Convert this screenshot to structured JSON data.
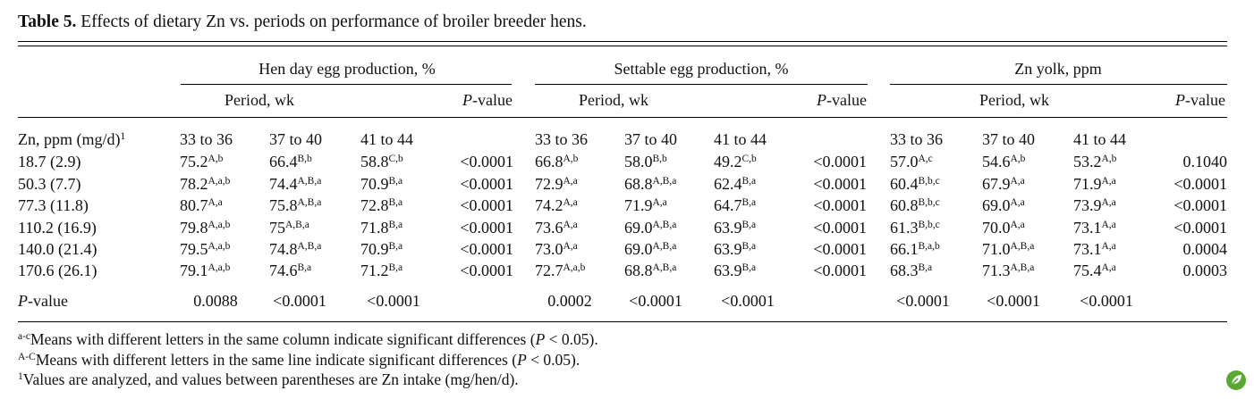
{
  "title": {
    "label": "Table 5.",
    "text": "Effects of dietary Zn vs. periods on performance of broiler breeder hens."
  },
  "groups": [
    {
      "label": "Hen day egg production, %",
      "period_label": "Period, wk",
      "p_label": "P",
      "p_suffix": "-value"
    },
    {
      "label": "Settable egg production, %",
      "period_label": "Period, wk",
      "p_label": "P",
      "p_suffix": "-value"
    },
    {
      "label": "Zn yolk, ppm",
      "period_label": "Period, wk",
      "p_label": "P",
      "p_suffix": "-value"
    }
  ],
  "row_header": {
    "text": "Zn, ppm (mg/d)",
    "sup": "1"
  },
  "periods": [
    "33 to 36",
    "37 to 40",
    "41 to 44"
  ],
  "rows": [
    {
      "label": "18.7 (2.9)",
      "cells": [
        [
          "75.2",
          "A,b"
        ],
        [
          "66.4",
          "B,b"
        ],
        [
          "58.8",
          "C,b"
        ],
        [
          "<0.0001",
          ""
        ],
        [
          "66.8",
          "A,b"
        ],
        [
          "58.0",
          "B,b"
        ],
        [
          "49.2",
          "C,b"
        ],
        [
          "<0.0001",
          ""
        ],
        [
          "57.0",
          "A,c"
        ],
        [
          "54.6",
          "A,b"
        ],
        [
          "53.2",
          "A,b"
        ],
        [
          "0.1040",
          ""
        ]
      ]
    },
    {
      "label": "50.3 (7.7)",
      "cells": [
        [
          "78.2",
          "A,a,b"
        ],
        [
          "74.4",
          "A,B,a"
        ],
        [
          "70.9",
          "B,a"
        ],
        [
          "<0.0001",
          ""
        ],
        [
          "72.9",
          "A,a"
        ],
        [
          "68.8",
          "A,B,a"
        ],
        [
          "62.4",
          "B,a"
        ],
        [
          "<0.0001",
          ""
        ],
        [
          "60.4",
          "B,b,c"
        ],
        [
          "67.9",
          "A,a"
        ],
        [
          "71.9",
          "A,a"
        ],
        [
          "<0.0001",
          ""
        ]
      ]
    },
    {
      "label": "77.3 (11.8)",
      "cells": [
        [
          "80.7",
          "A,a"
        ],
        [
          "75.8",
          "A,B,a"
        ],
        [
          "72.8",
          "B,a"
        ],
        [
          "<0.0001",
          ""
        ],
        [
          "74.2",
          "A,a"
        ],
        [
          "71.9",
          "A,a"
        ],
        [
          "64.7",
          "B,a"
        ],
        [
          "<0.0001",
          ""
        ],
        [
          "60.8",
          "B,b,c"
        ],
        [
          "69.0",
          "A,a"
        ],
        [
          "73.9",
          "A,a"
        ],
        [
          "<0.0001",
          ""
        ]
      ]
    },
    {
      "label": "110.2 (16.9)",
      "cells": [
        [
          "79.8",
          "A,a,b"
        ],
        [
          "75",
          "A,B,a"
        ],
        [
          "71.8",
          "B,a"
        ],
        [
          "<0.0001",
          ""
        ],
        [
          "73.6",
          "A,a"
        ],
        [
          "69.0",
          "A,B,a"
        ],
        [
          "63.9",
          "B,a"
        ],
        [
          "<0.0001",
          ""
        ],
        [
          "61.3",
          "B,b,c"
        ],
        [
          "70.0",
          "A,a"
        ],
        [
          "73.1",
          "A,a"
        ],
        [
          "<0.0001",
          ""
        ]
      ]
    },
    {
      "label": "140.0 (21.4)",
      "cells": [
        [
          "79.5",
          "A,a,b"
        ],
        [
          "74.8",
          "A,B,a"
        ],
        [
          "70.9",
          "B,a"
        ],
        [
          "<0.0001",
          ""
        ],
        [
          "73.0",
          "A,a"
        ],
        [
          "69.0",
          "A,B,a"
        ],
        [
          "63.9",
          "B,a"
        ],
        [
          "<0.0001",
          ""
        ],
        [
          "66.1",
          "B,a,b"
        ],
        [
          "71.0",
          "A,B,a"
        ],
        [
          "73.1",
          "A,a"
        ],
        [
          "0.0004",
          ""
        ]
      ]
    },
    {
      "label": "170.6 (26.1)",
      "cells": [
        [
          "79.1",
          "A,a,b"
        ],
        [
          "74.6",
          "B,a"
        ],
        [
          "71.2",
          "B,a"
        ],
        [
          "<0.0001",
          ""
        ],
        [
          "72.7",
          "A,a,b"
        ],
        [
          "68.8",
          "A,B,a"
        ],
        [
          "63.9",
          "B,a"
        ],
        [
          "<0.0001",
          ""
        ],
        [
          "68.3",
          "B,a"
        ],
        [
          "71.3",
          "A,B,a"
        ],
        [
          "75.4",
          "A,a"
        ],
        [
          "0.0003",
          ""
        ]
      ]
    }
  ],
  "pvalue_row": {
    "label_italic": "P",
    "label_rest": "-value",
    "values": [
      "0.0088",
      "<0.0001",
      "<0.0001",
      "0.0002",
      "<0.0001",
      "<0.0001",
      "<0.0001",
      "<0.0001",
      "<0.0001"
    ]
  },
  "footnotes": [
    {
      "sup": "a-c",
      "text": "Means with different letters in the same column indicate significant differences (",
      "p": "P",
      "tail": " < 0.05)."
    },
    {
      "sup": "A-C",
      "text": "Means with different letters in the same line indicate significant differences (",
      "p": "P",
      "tail": " < 0.05)."
    },
    {
      "sup": "1",
      "text": "Values are analyzed, and values between parentheses are Zn intake (mg/hen/d).",
      "p": "",
      "tail": ""
    }
  ],
  "logo_icon": "publisher-leaf-icon",
  "logo_color": "#5aa832"
}
